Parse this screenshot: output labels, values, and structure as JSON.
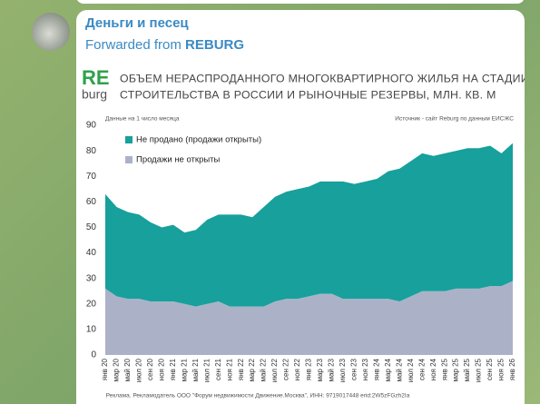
{
  "header": {
    "channel": "Деньги и песец",
    "forwarded_prefix": "Forwarded from",
    "forwarded_source": "REBURG"
  },
  "chart_data": {
    "type": "area",
    "logo_top": "RE",
    "logo_bottom": "burg",
    "title": [
      "ОБЪЕМ НЕРАСПРОДАННОГО МНОГОКВАРТИРНОГО ЖИЛЬЯ НА СТАДИИ",
      "СТРОИТЕЛЬСТВА В РОССИИ И РЫНОЧНЫЕ РЕЗЕРВЫ, МЛН. КВ. М"
    ],
    "note": "Данные на 1 число месяца",
    "source": "Источник - сайт Reburg по данным ЕИСЖС",
    "footer": "Реклама. Рекламодатель ООО \"Форум недвижимости Движение.Москва\", ИНН: 9719017448 erid:2W5zFGzh2Ia",
    "categories": [
      "янв 20",
      "мар 20",
      "май 20",
      "июл 20",
      "сен 20",
      "ноя 20",
      "янв 21",
      "мар 21",
      "май 21",
      "июл 21",
      "сен 21",
      "ноя 21",
      "янв 22",
      "мар 22",
      "май 22",
      "июл 22",
      "сен 22",
      "ноя 22",
      "янв 23",
      "мар 23",
      "май 23",
      "июл 23",
      "сен 23",
      "ноя 23",
      "янв 24",
      "мар 24",
      "май 24",
      "июл 24",
      "сен 24",
      "ноя 24",
      "янв 25",
      "мар 25",
      "май 25",
      "июл 25",
      "сен 25",
      "ноя 25",
      "янв 26"
    ],
    "series": [
      {
        "name": "Продажи не открыты",
        "color": "#abb2c8",
        "values": [
          26,
          23,
          22,
          22,
          21,
          21,
          21,
          20,
          19,
          20,
          21,
          19,
          19,
          19,
          19,
          21,
          22,
          22,
          23,
          24,
          24,
          22,
          22,
          22,
          22,
          22,
          21,
          23,
          25,
          25,
          25,
          26,
          26,
          26,
          27,
          27,
          29
        ]
      },
      {
        "name": "Не продано (продажи открыты)",
        "color": "#17a09c",
        "values": [
          37,
          35,
          34,
          33,
          31,
          29,
          30,
          28,
          30,
          33,
          34,
          36,
          36,
          35,
          39,
          41,
          42,
          43,
          43,
          44,
          44,
          46,
          45,
          46,
          47,
          50,
          52,
          53,
          54,
          53,
          54,
          54,
          55,
          55,
          55,
          52,
          54
        ]
      }
    ],
    "ylim": [
      0,
      90
    ],
    "yticks": [
      0,
      10,
      20,
      30,
      40,
      50,
      60,
      70,
      80,
      90
    ]
  }
}
